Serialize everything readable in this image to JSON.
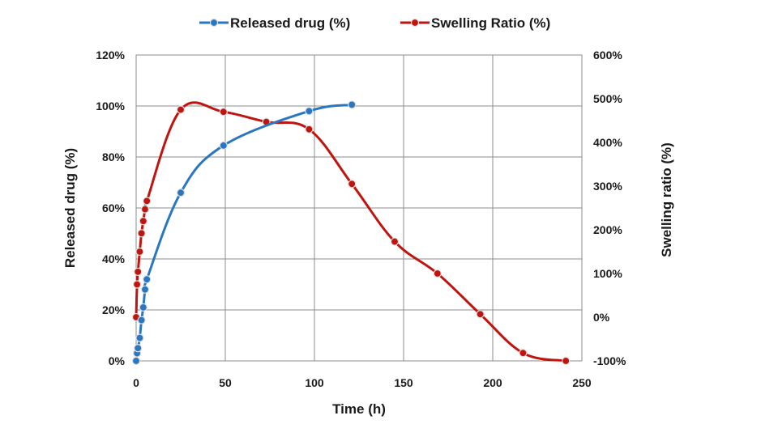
{
  "chart_data": {
    "type": "line",
    "title": "",
    "xlabel": "Time (h)",
    "ylabel": "Released drug (%)",
    "y2label": "Swelling ratio (%)",
    "xlim": [
      0,
      250
    ],
    "ylim": [
      0,
      120
    ],
    "y2lim": [
      -100,
      600
    ],
    "x_ticks": [
      0,
      50,
      100,
      150,
      200,
      250
    ],
    "y_ticks": [
      0,
      20,
      40,
      60,
      80,
      100,
      120
    ],
    "y2_ticks": [
      -100,
      0,
      100,
      200,
      300,
      400,
      500,
      600
    ],
    "x_tick_labels": [
      "0",
      "50",
      "100",
      "150",
      "200",
      "250"
    ],
    "y_tick_labels": [
      "0%",
      "20%",
      "40%",
      "60%",
      "80%",
      "100%",
      "120%"
    ],
    "y2_tick_labels": [
      "-100%",
      "0%",
      "100%",
      "200%",
      "300%",
      "400%",
      "500%",
      "600%"
    ],
    "grid": true,
    "legend_position": "top",
    "series": [
      {
        "name": "Released drug (%)",
        "axis": "left",
        "color": "#2a76c0",
        "x": [
          0,
          0.5,
          1,
          2,
          3,
          4,
          5,
          6,
          25,
          49,
          97,
          121
        ],
        "values": [
          0,
          3,
          5,
          9,
          16,
          21,
          28,
          32,
          66,
          84.5,
          98,
          100.5
        ]
      },
      {
        "name": "Swelling Ratio (%)",
        "axis": "right",
        "color": "#c0140f",
        "x": [
          0,
          0.5,
          1,
          2,
          3,
          4,
          5,
          6,
          25,
          49,
          73,
          97,
          121,
          145,
          169,
          193,
          217,
          241
        ],
        "values": [
          0,
          75,
          104,
          150,
          192,
          220,
          247,
          266,
          475,
          470,
          447,
          430,
          305,
          173,
          100,
          7,
          -82,
          -100
        ]
      }
    ]
  }
}
